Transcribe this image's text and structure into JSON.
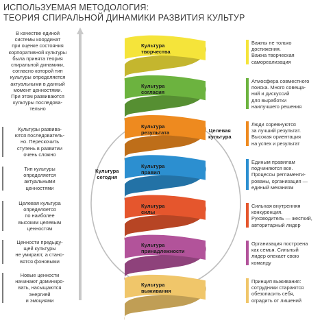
{
  "title": {
    "line1": "ИСПОЛЬЗУЕМАЯ МЕТОДОЛОГИЯ:",
    "line2": "ТЕОРИЯ СПИРАЛЬНОЙ ДИНАМИКИ РАЗВИТИЯ КУЛЬТУР"
  },
  "left_notes": [
    {
      "lines": [
        "В качестве единой",
        "системы координат",
        "при оценке состояния",
        "корпоративной культуры",
        "была принята теория",
        "спиральной динамики,",
        "согласно которой тип",
        "культуры определяется",
        "актуальными в данный",
        "момент ценностями.",
        "При этом развиваются",
        "культуры последова-",
        "тельно"
      ]
    },
    {
      "lines": [
        "Культуры развива-",
        "ются последователь-",
        "но. Перескочить",
        "ступень в развитии",
        "очень сложно"
      ]
    },
    {
      "lines": [
        "Тип культуры",
        "определяется",
        "актуальными",
        "ценностями"
      ]
    },
    {
      "lines": [
        "Целевая культура",
        "определяется",
        "по наиболее",
        "высоким целевым",
        "ценностям"
      ]
    },
    {
      "lines": [
        "Ценности предыду-",
        "щей культуры",
        "не умирают, а стано-",
        "вятся фоновыми"
      ]
    },
    {
      "lines": [
        "Новые ценности",
        "начинают доминиро-",
        "вать, насыщаются",
        "энергией",
        "и эмоциями"
      ]
    }
  ],
  "bands": [
    {
      "label1": "Культура",
      "label2": "творчества",
      "color": "#f5e43a"
    },
    {
      "label1": "Культура",
      "label2": "согласия",
      "color": "#6cb33f"
    },
    {
      "label1": "Культура",
      "label2": "результата",
      "color": "#ee8a1f"
    },
    {
      "label1": "Культура",
      "label2": "правил",
      "color": "#2c8fd0"
    },
    {
      "label1": "Культура",
      "label2": "силы",
      "color": "#e5562d"
    },
    {
      "label1": "Культура",
      "label2": "принадлежности",
      "color": "#b2539a"
    },
    {
      "label1": "Культура",
      "label2": "выживания",
      "color": "#f0c66a"
    }
  ],
  "circle": {
    "target_line1": "Целевая",
    "target_line2": "культура",
    "today_line1": "Культура",
    "today_line2": "сегодня"
  },
  "right_notes": [
    {
      "color": "#f5e43a",
      "lines": [
        "Важны не только",
        "достижения.",
        "Важна творческая",
        "самореализация"
      ]
    },
    {
      "color": "#6cb33f",
      "lines": [
        "Атмосфера совместного",
        "поиска. Много совеща-",
        "ний и дискуссий",
        "для выработки",
        "наилучшего решения"
      ]
    },
    {
      "color": "#ee8a1f",
      "lines": [
        "Люди соревнуются",
        "за лучший результат.",
        "Высокая ориентация",
        "на успех и результат"
      ]
    },
    {
      "color": "#2c8fd0",
      "lines": [
        "Единым правилам",
        "подчиняются все.",
        "Процессы регламенти-",
        "рованы, организация —",
        "единый механизм"
      ]
    },
    {
      "color": "#e5562d",
      "lines": [
        "Сильная внутренняя",
        "конкуренция.",
        "Руководитель — жесткий,",
        "авторитарный лидер"
      ]
    },
    {
      "color": "#b2539a",
      "lines": [
        "Организация построена",
        "как семья. Сильный",
        "лидер опекает свою",
        "команду"
      ]
    },
    {
      "color": "#f0c66a",
      "lines": [
        "Принцип выживания:",
        "сотрудники стараются",
        "обезопасить себя,",
        "оградить от лишений"
      ]
    }
  ]
}
